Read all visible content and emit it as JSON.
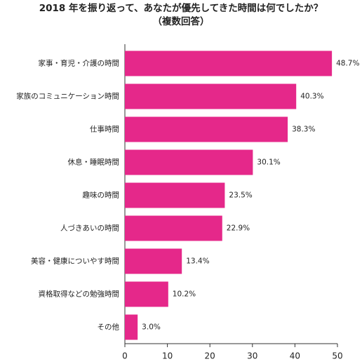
{
  "chart_data": {
    "type": "bar",
    "orientation": "horizontal",
    "title": "2018 年を振り返って、あなたが優先してきた時間は何でしたか？",
    "subtitle": "（複数回答）",
    "categories": [
      "家事・育児・介護の時間",
      "家族のコミュニケーション時間",
      "仕事時間",
      "休息・睡眠時間",
      "趣味の時間",
      "人づきあいの時間",
      "美容・健康についやす時間",
      "資格取得などの勉強時間",
      "その他"
    ],
    "values": [
      48.7,
      40.3,
      38.3,
      30.1,
      23.5,
      22.9,
      13.4,
      10.2,
      3.0
    ],
    "value_labels": [
      "48.7%",
      "40.3%",
      "38.3%",
      "30.1%",
      "23.5%",
      "22.9%",
      "13.4%",
      "10.2%",
      "3.0%"
    ],
    "color": "#e5288a",
    "xlim": [
      0,
      50
    ],
    "xticks": [
      0,
      10,
      20,
      30,
      40,
      50
    ]
  }
}
